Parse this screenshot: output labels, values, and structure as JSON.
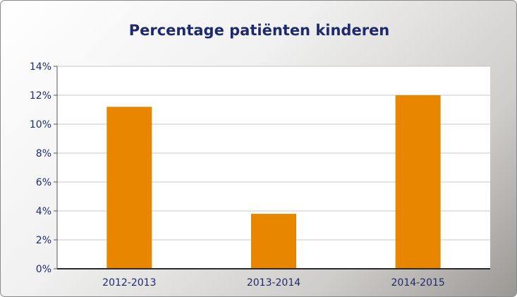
{
  "chart_data": {
    "type": "bar",
    "title": "Percentage patiënten kinderen",
    "xlabel": "",
    "ylabel": "",
    "categories": [
      "2012-2013",
      "2013-2014",
      "2014-2015"
    ],
    "values": [
      11.2,
      3.8,
      12.0
    ],
    "ylim": [
      0,
      14
    ],
    "yticks": [
      "0%",
      "2%",
      "4%",
      "6%",
      "8%",
      "10%",
      "12%",
      "14%"
    ],
    "grid": true,
    "colors": {
      "bar": "#e88600",
      "grid": "#c8c8c8",
      "text": "#1f2a6b",
      "plot_bg": "#ffffff"
    }
  }
}
